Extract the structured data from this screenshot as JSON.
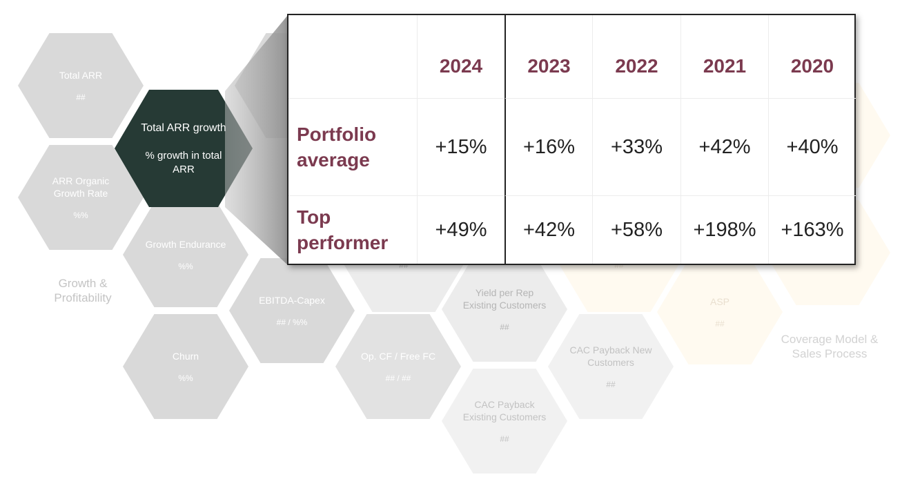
{
  "hexes": [
    {
      "label": "Total ARR",
      "value": "##"
    },
    {
      "label": "ARR Organic Growth Rate",
      "value": "%%"
    },
    {
      "label": "Growth Endurance",
      "value": "%%"
    },
    {
      "label": "Churn",
      "value": "%%"
    },
    {
      "label": "EBITDA-Capex",
      "value": "## / %%"
    },
    {
      "label": "",
      "value": "##"
    },
    {
      "label": "Op. CF / Free FC",
      "value": "## / ##"
    },
    {
      "label": "Yield per Rep Existing Customers",
      "value": "##"
    },
    {
      "label": "CAC Payback Existing Customers",
      "value": "##"
    },
    {
      "label": "CAC Payback New Customers",
      "value": "##"
    },
    {
      "label": "",
      "value": "##"
    },
    {
      "label": "ASP",
      "value": "##"
    },
    {
      "label": "",
      "value": "## / ##"
    }
  ],
  "focus_hex": {
    "label": "Total ARR growth",
    "value": "% growth in total ARR"
  },
  "categories": {
    "growth": "Growth & Profitability",
    "coverage": "Coverage Model & Sales Process"
  },
  "table": {
    "years": [
      "2024",
      "2023",
      "2022",
      "2021",
      "2020"
    ],
    "rows": [
      {
        "label": "Portfolio average",
        "values": [
          "+15%",
          "+16%",
          "+33%",
          "+42%",
          "+40%"
        ]
      },
      {
        "label": "Top performer",
        "values": [
          "+49%",
          "+42%",
          "+58%",
          "+198%",
          "+163%"
        ]
      }
    ]
  },
  "colors": {
    "focus": "#263a35",
    "accent": "#7b3a4f"
  }
}
